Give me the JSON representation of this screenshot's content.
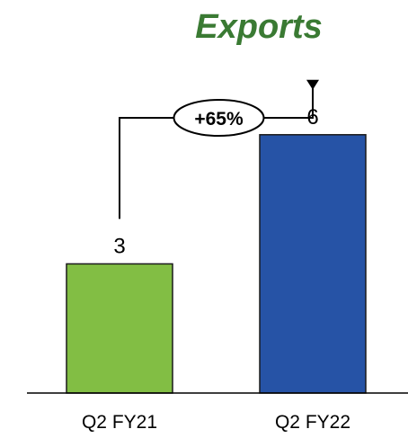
{
  "chart_data": {
    "type": "bar",
    "title": "Exports",
    "categories": [
      "Q2 FY21",
      "Q2 FY22"
    ],
    "values": [
      3,
      6
    ],
    "value_labels": [
      "3",
      "6"
    ],
    "growth_label": "+65%",
    "ylim": [
      0,
      7.5
    ],
    "grid": false,
    "legend": "none",
    "colors": {
      "title": "#3a7a33",
      "bars": [
        "#82be44",
        "#2653a6"
      ],
      "outline": "#1a1a1a",
      "axis": "#000000",
      "arrow": "#000000"
    }
  }
}
